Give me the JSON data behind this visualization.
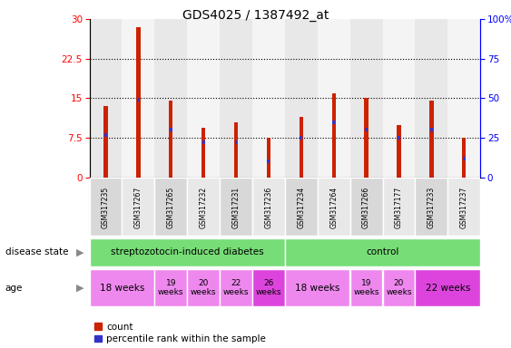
{
  "title": "GDS4025 / 1387492_at",
  "samples": [
    "GSM317235",
    "GSM317267",
    "GSM317265",
    "GSM317232",
    "GSM317231",
    "GSM317236",
    "GSM317234",
    "GSM317264",
    "GSM317266",
    "GSM317177",
    "GSM317233",
    "GSM317237"
  ],
  "counts": [
    13.5,
    28.5,
    14.5,
    9.5,
    10.5,
    7.5,
    11.5,
    16.0,
    15.0,
    10.0,
    14.5,
    7.5
  ],
  "percentiles": [
    27,
    49,
    30,
    22,
    22,
    10,
    25,
    35,
    30,
    25,
    30,
    12
  ],
  "ylim_left": [
    0,
    30
  ],
  "ylim_right": [
    0,
    100
  ],
  "yticks_left": [
    0,
    7.5,
    15,
    22.5,
    30
  ],
  "yticks_right": [
    0,
    25,
    50,
    75,
    100
  ],
  "bar_color": "#cc2200",
  "percentile_color": "#3333cc",
  "disease_state_groups": [
    {
      "label": "streptozotocin-induced diabetes",
      "start": 0,
      "end": 6,
      "color": "#77dd77"
    },
    {
      "label": "control",
      "start": 6,
      "end": 12,
      "color": "#77dd77"
    }
  ],
  "age_groups": [
    {
      "label": "18 weeks",
      "start": 0,
      "end": 2,
      "color": "#ee88ee",
      "small": false
    },
    {
      "label": "19\nweeks",
      "start": 2,
      "end": 3,
      "color": "#ee88ee",
      "small": true
    },
    {
      "label": "20\nweeks",
      "start": 3,
      "end": 4,
      "color": "#ee88ee",
      "small": true
    },
    {
      "label": "22\nweeks",
      "start": 4,
      "end": 5,
      "color": "#ee88ee",
      "small": true
    },
    {
      "label": "26\nweeks",
      "start": 5,
      "end": 6,
      "color": "#dd44dd",
      "small": true
    },
    {
      "label": "18 weeks",
      "start": 6,
      "end": 8,
      "color": "#ee88ee",
      "small": false
    },
    {
      "label": "19\nweeks",
      "start": 8,
      "end": 9,
      "color": "#ee88ee",
      "small": true
    },
    {
      "label": "20\nweeks",
      "start": 9,
      "end": 10,
      "color": "#ee88ee",
      "small": true
    },
    {
      "label": "22 weeks",
      "start": 10,
      "end": 12,
      "color": "#dd44dd",
      "small": false
    }
  ],
  "tick_label_bg": "#cccccc",
  "legend_count_label": "count",
  "legend_pct_label": "percentile rank within the sample",
  "bar_width": 0.12,
  "pct_bar_width": 0.08,
  "pct_bar_height": 0.7
}
